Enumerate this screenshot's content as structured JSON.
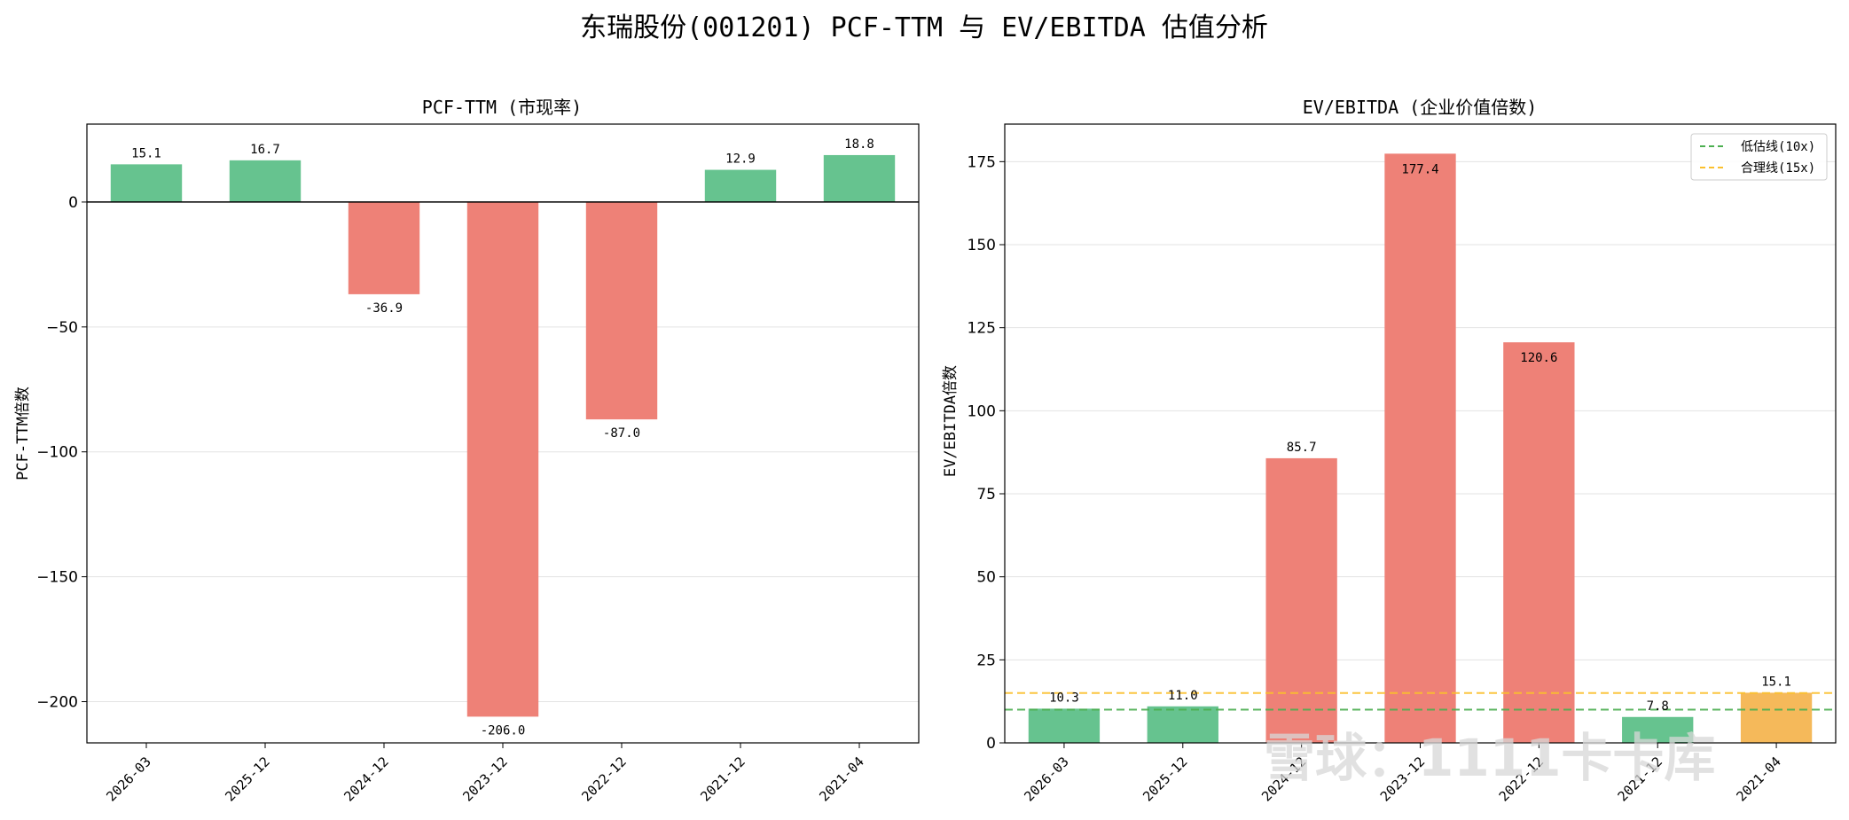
{
  "title": "东瑞股份(001201) PCF-TTM 与 EV/EBITDA 估值分析",
  "watermark": "雪球：1111卡卡库",
  "colors": {
    "positive": "#66c38f",
    "negative": "#ee8177",
    "orange": "#f5b95a",
    "low_line": "#4caf50",
    "fair_line": "#fbc02d"
  },
  "chart_data": [
    {
      "type": "bar",
      "title": "PCF-TTM (市现率)",
      "xlabel": "",
      "ylabel": "PCF-TTM倍数",
      "categories": [
        "2026-03",
        "2025-12",
        "2024-12",
        "2023-12",
        "2022-12",
        "2021-12",
        "2021-04"
      ],
      "values": [
        15.1,
        16.7,
        -36.9,
        -206.0,
        -87.0,
        12.9,
        18.8
      ],
      "value_labels": [
        "15.1",
        "16.7",
        "-36.9",
        "-206.0",
        "-87.0",
        "12.9",
        "18.8"
      ],
      "bar_colors": [
        "#66c38f",
        "#66c38f",
        "#ee8177",
        "#ee8177",
        "#ee8177",
        "#66c38f",
        "#66c38f"
      ],
      "ylim": [
        -216.5,
        31.2
      ],
      "yticks": [
        0,
        -50,
        -100,
        -150,
        -200
      ],
      "ytick_labels": [
        "0",
        "−50",
        "−100",
        "−150",
        "−200"
      ],
      "zero_line": true,
      "grid": "y"
    },
    {
      "type": "bar",
      "title": "EV/EBITDA (企业价值倍数)",
      "xlabel": "",
      "ylabel": "EV/EBITDA倍数",
      "categories": [
        "2026-03",
        "2025-12",
        "2024-12",
        "2023-12",
        "2022-12",
        "2021-12",
        "2021-04"
      ],
      "values": [
        10.3,
        11.0,
        85.7,
        177.4,
        120.6,
        7.8,
        15.1
      ],
      "value_labels": [
        "10.3",
        "11.0",
        "85.7",
        "177.4",
        "120.6",
        "7.8",
        "15.1"
      ],
      "label_inside": [
        false,
        false,
        false,
        true,
        true,
        false,
        false
      ],
      "bar_colors": [
        "#66c38f",
        "#66c38f",
        "#ee8177",
        "#ee8177",
        "#ee8177",
        "#66c38f",
        "#f5b95a"
      ],
      "ylim": [
        0,
        186.3
      ],
      "yticks": [
        0,
        25,
        50,
        75,
        100,
        125,
        150,
        175
      ],
      "ytick_labels": [
        "0",
        "25",
        "50",
        "75",
        "100",
        "125",
        "150",
        "175"
      ],
      "reference_lines": [
        {
          "name": "低估线(10x)",
          "value": 10,
          "color": "#4caf50"
        },
        {
          "name": "合理线(15x)",
          "value": 15,
          "color": "#fbc02d"
        }
      ],
      "legend": "top-right",
      "grid": "y"
    }
  ]
}
